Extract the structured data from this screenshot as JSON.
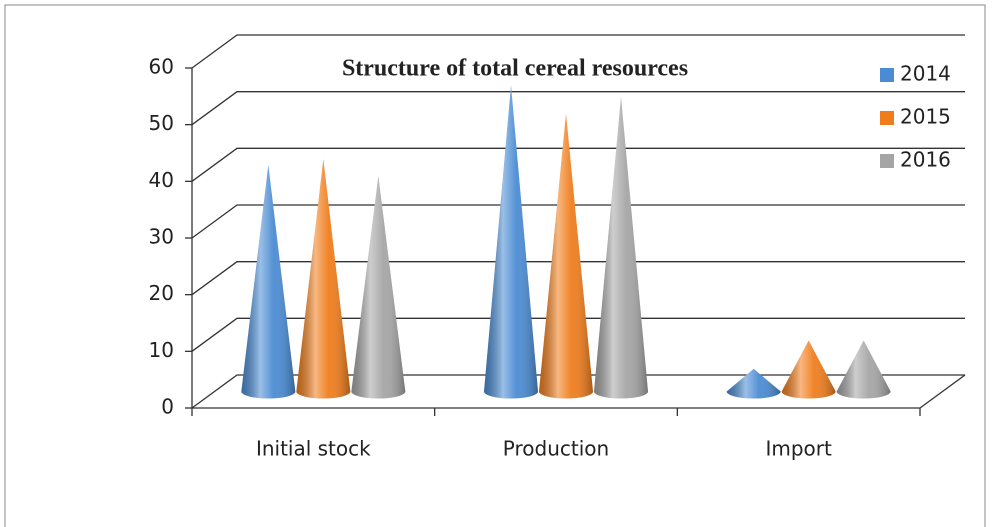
{
  "chart_data": {
    "type": "cone3d",
    "title": "Structure of total cereal resources",
    "categories": [
      "Initial stock",
      "Production",
      "Import"
    ],
    "series": [
      {
        "name": "2014",
        "color": "#4a8bd3",
        "values": [
          40,
          54,
          4
        ]
      },
      {
        "name": "2015",
        "color": "#f07d1c",
        "values": [
          41,
          49,
          9
        ]
      },
      {
        "name": "2016",
        "color": "#a5a5a5",
        "values": [
          38,
          52,
          9
        ]
      }
    ],
    "ylim": [
      0,
      60
    ],
    "yticks": [
      0,
      10,
      20,
      30,
      40,
      50,
      60
    ],
    "grid": true,
    "legend": "right"
  }
}
